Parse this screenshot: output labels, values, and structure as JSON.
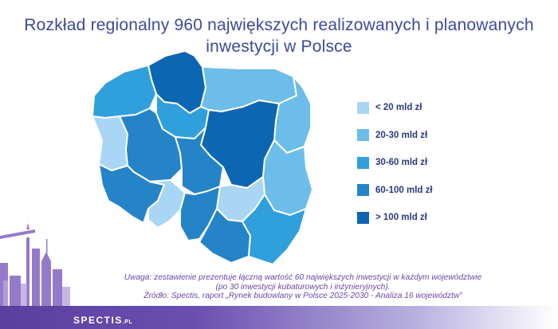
{
  "title": {
    "line1": "Rozkład regionalny 960 największych realizowanych i planowanych",
    "line2": "inwestycji w Polsce"
  },
  "legend": [
    {
      "label": "< 20 mld zł",
      "color": "#a9d6f5"
    },
    {
      "label": "20-30 mld zł",
      "color": "#6cbde9"
    },
    {
      "label": "30-60 mld zł",
      "color": "#30a0dc"
    },
    {
      "label": "60-100 mld zł",
      "color": "#2584c8"
    },
    {
      "label": "> 100 mld zł",
      "color": "#0d66b2"
    }
  ],
  "regions": [
    {
      "id": "pomorskie",
      "category": "> 100 mld zł",
      "color": "#0d66b2"
    },
    {
      "id": "warminsko-mazurskie",
      "category": "20-30 mld zł",
      "color": "#6cbde9"
    },
    {
      "id": "zachodniopomorskie",
      "category": "30-60 mld zł",
      "color": "#30a0dc"
    },
    {
      "id": "kujawsko-pomorskie",
      "category": "30-60 mld zł",
      "color": "#30a0dc"
    },
    {
      "id": "podlaskie",
      "category": "20-30 mld zł",
      "color": "#6cbde9"
    },
    {
      "id": "lubuskie",
      "category": "< 20 mld zł",
      "color": "#a9d6f5"
    },
    {
      "id": "wielkopolskie",
      "category": "60-100 mld zł",
      "color": "#2584c8"
    },
    {
      "id": "mazowieckie",
      "category": "> 100 mld zł",
      "color": "#0d66b2"
    },
    {
      "id": "lodzkie",
      "category": "60-100 mld zł",
      "color": "#2584c8"
    },
    {
      "id": "lubelskie",
      "category": "20-30 mld zł",
      "color": "#6cbde9"
    },
    {
      "id": "dolnoslaskie",
      "category": "60-100 mld zł",
      "color": "#2584c8"
    },
    {
      "id": "opolskie",
      "category": "< 20 mld zł",
      "color": "#a9d6f5"
    },
    {
      "id": "swietokrzyskie",
      "category": "< 20 mld zł",
      "color": "#a9d6f5"
    },
    {
      "id": "slaskie",
      "category": "60-100 mld zł",
      "color": "#2584c8"
    },
    {
      "id": "malopolskie",
      "category": "60-100 mld zł",
      "color": "#2584c8"
    },
    {
      "id": "podkarpackie",
      "category": "30-60 mld zł",
      "color": "#30a0dc"
    }
  ],
  "notes": {
    "line1": "Uwaga: zestawienie prezentuje łączną wartość 60 największych inwestycji w każdym województwie",
    "line2": "(po 30 inwestycji kubaturowych i inżynieryjnych).",
    "line3": "Źródło: Spectis, raport „Rynek budowlany w Polsce 2025-2030 - Analiza 16 województw”"
  },
  "footer": {
    "brand": "SPECTIS",
    "brand_suffix": ".PL"
  }
}
